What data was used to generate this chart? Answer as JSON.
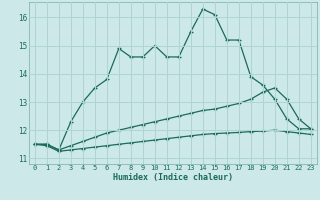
{
  "xlabel": "Humidex (Indice chaleur)",
  "background_color": "#cce8e8",
  "grid_color": "#afd4d4",
  "line_color": "#1a6b5a",
  "xlim_min": -0.5,
  "xlim_max": 23.5,
  "ylim_min": 10.8,
  "ylim_max": 16.55,
  "yticks": [
    11,
    12,
    13,
    14,
    15,
    16
  ],
  "xticks": [
    0,
    1,
    2,
    3,
    4,
    5,
    6,
    7,
    8,
    9,
    10,
    11,
    12,
    13,
    14,
    15,
    16,
    17,
    18,
    19,
    20,
    21,
    22,
    23
  ],
  "series1_x": [
    0,
    1,
    2,
    3,
    4,
    5,
    6,
    7,
    8,
    9,
    10,
    11,
    12,
    13,
    14,
    15,
    16,
    17,
    18,
    19,
    20,
    21,
    22,
    23
  ],
  "series1_y": [
    11.5,
    11.5,
    11.3,
    12.3,
    13.0,
    13.5,
    13.8,
    14.9,
    14.6,
    14.6,
    15.0,
    14.6,
    14.6,
    15.5,
    16.3,
    16.1,
    15.2,
    15.2,
    13.9,
    13.6,
    13.1,
    12.4,
    12.05,
    12.05
  ],
  "series2_x": [
    0,
    1,
    2,
    3,
    4,
    5,
    6,
    7,
    8,
    9,
    10,
    11,
    12,
    13,
    14,
    15,
    16,
    17,
    18,
    19,
    20,
    21,
    22,
    23
  ],
  "series2_y": [
    11.5,
    11.5,
    11.3,
    11.45,
    11.6,
    11.75,
    11.9,
    12.0,
    12.1,
    12.2,
    12.3,
    12.4,
    12.5,
    12.6,
    12.7,
    12.75,
    12.85,
    12.95,
    13.1,
    13.35,
    13.5,
    13.1,
    12.4,
    12.05
  ],
  "series3_x": [
    0,
    1,
    2,
    3,
    4,
    5,
    6,
    7,
    8,
    9,
    10,
    11,
    12,
    13,
    14,
    15,
    16,
    17,
    18,
    19,
    20,
    21,
    22,
    23
  ],
  "series3_y": [
    11.5,
    11.45,
    11.25,
    11.3,
    11.35,
    11.4,
    11.45,
    11.5,
    11.55,
    11.6,
    11.65,
    11.7,
    11.75,
    11.8,
    11.85,
    11.88,
    11.9,
    11.92,
    11.95,
    11.97,
    12.0,
    11.95,
    11.9,
    11.85
  ]
}
